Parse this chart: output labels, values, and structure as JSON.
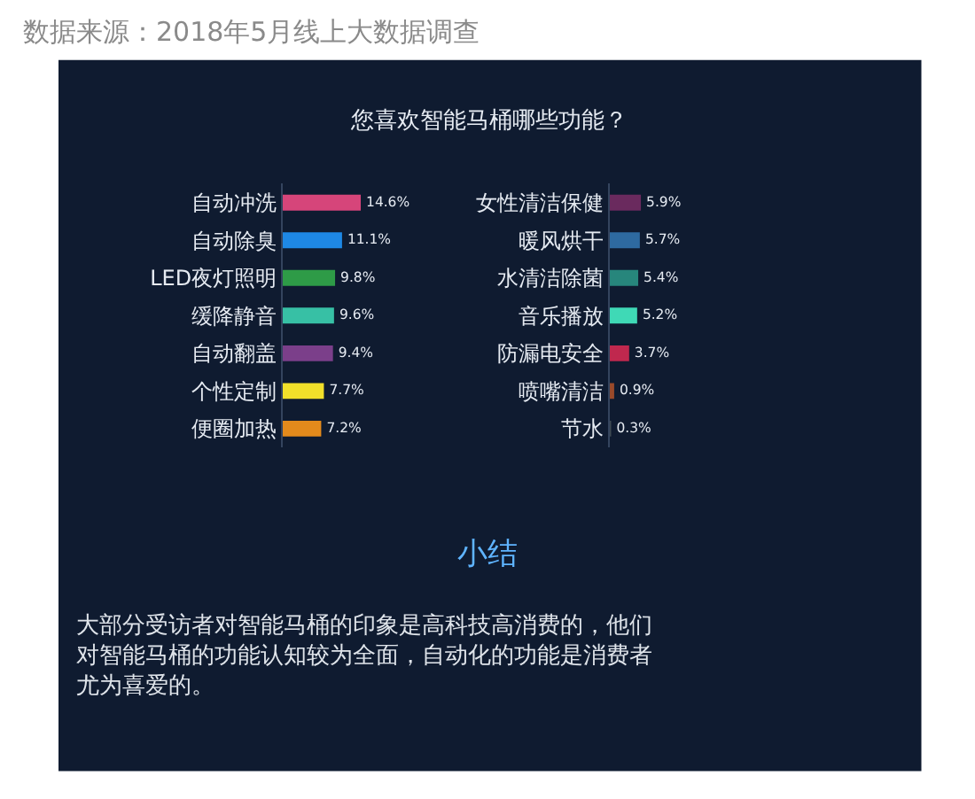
{
  "chart_data": [
    {
      "type": "bar",
      "orientation": "horizontal",
      "title": "您喜欢智能马桶哪些功能？",
      "categories": [
        "自动冲洗",
        "自动除臭",
        "LED夜灯照明",
        "缓降静音",
        "自动翻盖",
        "个性定制",
        "便圈加热"
      ],
      "values": [
        14.6,
        11.1,
        9.8,
        9.6,
        9.4,
        7.7,
        7.2
      ],
      "colors": [
        "#d6457a",
        "#1e88e5",
        "#2e9b47",
        "#37c0a5",
        "#7b3f8a",
        "#f2e02a",
        "#e38a1c"
      ],
      "value_labels": [
        "14.6%",
        "11.1%",
        "9.8%",
        "9.6%",
        "9.4%",
        "7.7%",
        "7.2%"
      ],
      "annotations": [
        "数据来源：2018年5月线上大数据调查",
        "小结",
        "大部分受访者对智能马桶的印象是高科技高消费的，他们对智能马桶的功能认知较为全面，自动化的功能是消费者尤为喜爱的。"
      ]
    },
    {
      "type": "bar",
      "orientation": "horizontal",
      "categories": [
        "女性清洁保健",
        "暖风烘干",
        "水清洁除菌",
        "音乐播放",
        "防漏电安全",
        "喷嘴清洁",
        "节水"
      ],
      "values": [
        5.9,
        5.7,
        5.4,
        5.2,
        3.7,
        0.9,
        0.3
      ],
      "colors": [
        "#6a2a5e",
        "#2e6aa0",
        "#27867c",
        "#3fd9b6",
        "#c0284e",
        "#9a4a2a",
        "#3e4a52"
      ],
      "value_labels": [
        "5.9%",
        "5.7%",
        "5.4%",
        "5.2%",
        "3.7%",
        "0.9%",
        "0.3%"
      ]
    }
  ]
}
